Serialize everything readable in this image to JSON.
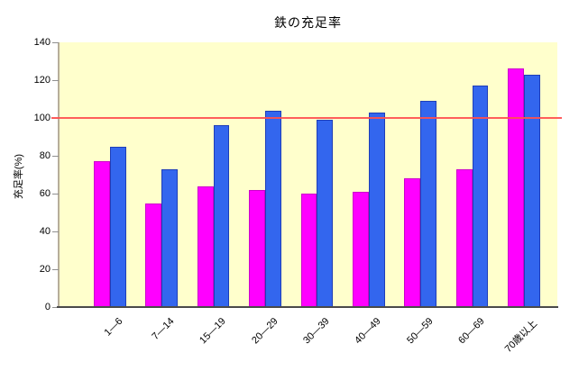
{
  "chart_data": {
    "type": "bar",
    "title": "鉄の充足率",
    "xlabel": "",
    "ylabel": "充足率(%)",
    "categories": [
      "1—6",
      "7—14",
      "15—19",
      "20—29",
      "30—39",
      "40—49",
      "50—59",
      "60—69",
      "70歳以上"
    ],
    "series": [
      {
        "name": "magenta-series",
        "color": "#FF00FF",
        "border_color": "#CC00CC",
        "values": [
          77,
          55,
          64,
          62,
          60,
          61,
          68,
          73,
          126
        ]
      },
      {
        "name": "blue-series",
        "color": "#3366EE",
        "border_color": "#1E3EB8",
        "values": [
          85,
          73,
          96,
          104,
          99,
          103,
          109,
          117,
          123
        ]
      }
    ],
    "ylim": [
      0,
      140
    ],
    "yticks": [
      0,
      20,
      40,
      60,
      80,
      100,
      120,
      140
    ],
    "reference_line": {
      "value": 100,
      "color": "#FF5050"
    },
    "plot_background": "#FFFFCC",
    "legend": "none",
    "grid": "off"
  }
}
